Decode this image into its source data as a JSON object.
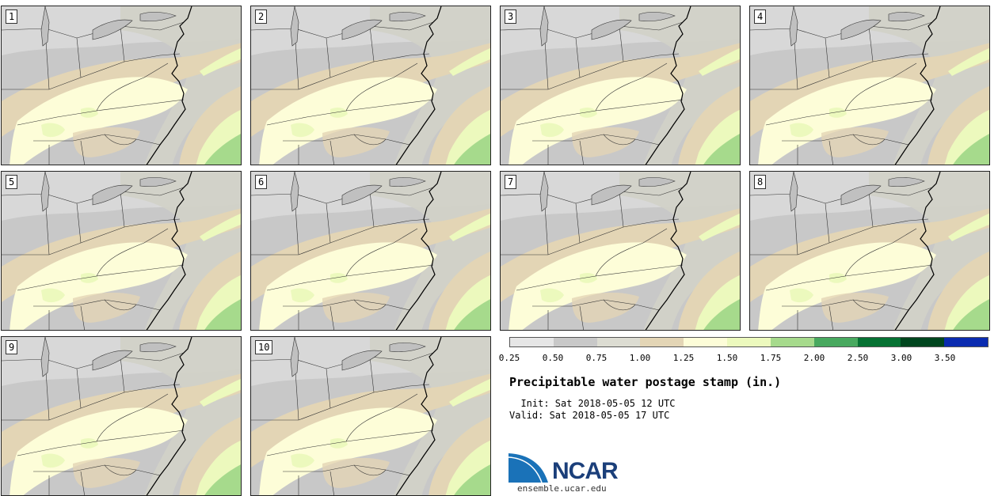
{
  "title": "Precipitable water postage stamp (in.)",
  "init_line": "  Init: Sat 2018-05-05 12 UTC",
  "valid_line": "Valid: Sat 2018-05-05 17 UTC",
  "logo": {
    "text": "NCAR",
    "url": "ensemble.ucar.edu"
  },
  "colorbar": {
    "labels": [
      "0.25",
      "0.50",
      "0.75",
      "1.00",
      "1.25",
      "1.50",
      "1.75",
      "2.00",
      "2.50",
      "3.00",
      "3.50"
    ],
    "colors": [
      "#e6e6e6",
      "#c8c8c8",
      "#dcdcd2",
      "#e3d5b5",
      "#fdfdd8",
      "#ecf9bd",
      "#a6da8c",
      "#48a95f",
      "#067233",
      "#00461e",
      "#0a2bb0"
    ]
  },
  "panels": [
    {
      "label": "1"
    },
    {
      "label": "2"
    },
    {
      "label": "3"
    },
    {
      "label": "4"
    },
    {
      "label": "5"
    },
    {
      "label": "6"
    },
    {
      "label": "7"
    },
    {
      "label": "8"
    },
    {
      "label": "9"
    },
    {
      "label": "10"
    }
  ]
}
